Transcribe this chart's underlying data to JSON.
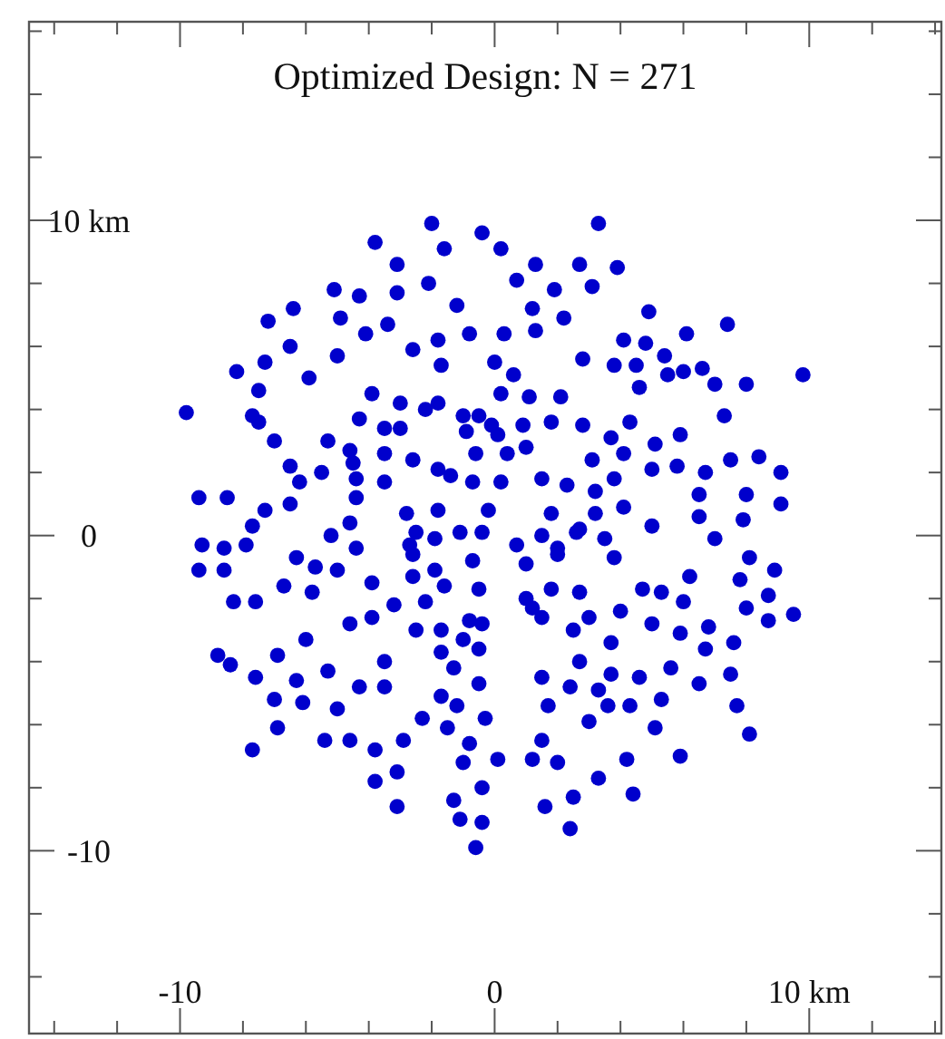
{
  "chart_data": {
    "type": "scatter",
    "title": "Optimized Design: N = 271",
    "marker": "circle",
    "color": "#0000cc",
    "xlim": [
      -14.8,
      14.2
    ],
    "ylim": [
      -15.8,
      16.3
    ],
    "xticks": [
      {
        "value": -14,
        "label": null
      },
      {
        "value": -12,
        "label": null
      },
      -10,
      {
        "value": -8,
        "label": null
      },
      {
        "value": -6,
        "label": null
      },
      {
        "value": -4,
        "label": null
      },
      {
        "value": -2,
        "label": null
      },
      0,
      {
        "value": 2,
        "label": null
      },
      {
        "value": 4,
        "label": null
      },
      {
        "value": 6,
        "label": null
      },
      {
        "value": 8,
        "label": null
      },
      {
        "value": 10,
        "label": "10 km"
      },
      {
        "value": 12,
        "label": null
      },
      {
        "value": 14,
        "label": null
      }
    ],
    "yticks": [
      {
        "value": -14,
        "label": null
      },
      {
        "value": -12,
        "label": null
      },
      -10,
      {
        "value": -8,
        "label": null
      },
      {
        "value": -6,
        "label": null
      },
      {
        "value": -4,
        "label": null
      },
      {
        "value": -2,
        "label": null
      },
      0,
      {
        "value": 2,
        "label": null
      },
      {
        "value": 4,
        "label": null
      },
      {
        "value": 6,
        "label": null
      },
      {
        "value": 8,
        "label": null
      },
      {
        "value": 10,
        "label": "10 km"
      },
      {
        "value": 12,
        "label": null
      },
      {
        "value": 14,
        "label": null
      },
      {
        "value": 16,
        "label": null
      }
    ],
    "x": [
      -2.0,
      -0.4,
      -3.8,
      -1.6,
      -3.1,
      -2.1,
      -5.1,
      -4.3,
      -3.1,
      -1.2,
      -6.4,
      -7.2,
      -4.9,
      -3.4,
      -4.1,
      -0.8,
      -1.8,
      -6.5,
      -2.6,
      -5.0,
      -7.3,
      -1.7,
      -8.2,
      -5.9,
      -7.5,
      -3.9,
      -3.0,
      -2.2,
      -1.8,
      -9.8,
      -7.7,
      -7.5,
      -1.0,
      -0.5,
      -4.3,
      -3.5,
      -3.0,
      -0.9,
      -7.0,
      -5.3,
      -4.6,
      -0.6,
      -4.5,
      -2.6,
      -3.5,
      -6.5,
      -5.5,
      -4.4,
      -1.8,
      -1.4,
      -6.2,
      -3.5,
      -0.7,
      -9.4,
      -4.4,
      -8.5,
      -6.5,
      -7.3,
      -7.7,
      -4.6,
      -2.8,
      -1.8,
      -0.2,
      3.3,
      0.2,
      1.3,
      2.7,
      3.9,
      0.7,
      1.9,
      3.1,
      1.2,
      4.9,
      2.2,
      7.4,
      1.3,
      0.3,
      4.1,
      4.8,
      6.1,
      2.8,
      3.8,
      4.5,
      5.4,
      0.0,
      0.6,
      5.5,
      6.0,
      6.6,
      7.0,
      8.0,
      9.8,
      4.6,
      0.2,
      1.1,
      2.1,
      7.3,
      4.3,
      0.9,
      1.8,
      2.8,
      -0.1,
      0.1,
      3.7,
      5.9,
      5.1,
      0.4,
      1.0,
      4.1,
      3.1,
      5.0,
      5.8,
      6.7,
      7.5,
      8.4,
      9.1,
      0.2,
      1.5,
      2.3,
      3.8,
      3.2,
      6.5,
      8.0,
      9.1,
      1.8,
      3.2,
      4.1,
      6.5,
      7.9,
      5.0,
      2.7,
      -5.2,
      -2.5,
      -1.9,
      -1.1,
      -0.4,
      -2.7,
      -2.6,
      -9.3,
      -8.6,
      -7.9,
      -6.3,
      -4.4,
      -9.4,
      -8.6,
      -5.7,
      -5.0,
      -2.6,
      -1.9,
      -0.7,
      -6.7,
      -5.8,
      -3.9,
      -1.6,
      -0.5,
      -8.3,
      -7.6,
      -3.2,
      -2.2,
      -4.6,
      -3.9,
      -2.5,
      -1.7,
      -0.8,
      -0.4,
      -6.0,
      -1.0,
      -8.8,
      -8.4,
      -6.9,
      -1.7,
      -0.5,
      -7.6,
      -5.3,
      -3.5,
      -6.3,
      -4.3,
      -3.5,
      -1.3,
      -0.5,
      -7.0,
      -6.1,
      -1.7,
      -5.0,
      -1.2,
      -6.9,
      -2.3,
      -1.5,
      -0.3,
      -5.4,
      -4.6,
      -3.8,
      -2.9,
      -0.8,
      -7.7,
      -1.0,
      -3.1,
      -3.8,
      -0.4,
      -3.1,
      -1.3,
      -1.1,
      -0.4,
      -0.6,
      0.7,
      1.5,
      2.0,
      2.0,
      2.6,
      3.5,
      7.0,
      3.8,
      8.1,
      1.0,
      8.9,
      6.2,
      7.8,
      1.8,
      2.7,
      4.7,
      5.3,
      8.7,
      1.0,
      1.2,
      1.5,
      4.0,
      6.0,
      8.0,
      9.5,
      8.7,
      3.0,
      2.5,
      5.0,
      5.9,
      6.8,
      7.6,
      3.7,
      6.7,
      2.7,
      5.6,
      1.5,
      3.7,
      4.6,
      7.5,
      2.4,
      3.3,
      6.5,
      1.7,
      3.6,
      4.3,
      5.3,
      7.7,
      3.0,
      5.1,
      8.1,
      1.5,
      0.1,
      1.2,
      2.0,
      4.2,
      5.9,
      3.3,
      4.4,
      2.5,
      1.6,
      2.4
    ],
    "values": [
      9.9,
      9.6,
      9.3,
      9.1,
      8.6,
      8.0,
      7.8,
      7.6,
      7.7,
      7.3,
      7.2,
      6.8,
      6.9,
      6.7,
      6.4,
      6.4,
      6.2,
      6.0,
      5.9,
      5.7,
      5.5,
      5.4,
      5.2,
      5.0,
      4.6,
      4.5,
      4.2,
      4.0,
      4.2,
      3.9,
      3.8,
      3.6,
      3.8,
      3.8,
      3.7,
      3.4,
      3.4,
      3.3,
      3.0,
      3.0,
      2.7,
      2.6,
      2.3,
      2.4,
      2.6,
      2.2,
      2.0,
      1.8,
      2.1,
      1.9,
      1.7,
      1.7,
      1.7,
      1.2,
      1.2,
      1.2,
      1.0,
      0.8,
      0.3,
      0.4,
      0.7,
      0.8,
      0.8,
      9.9,
      9.1,
      8.6,
      8.6,
      8.5,
      8.1,
      7.8,
      7.9,
      7.2,
      7.1,
      6.9,
      6.7,
      6.5,
      6.4,
      6.2,
      6.1,
      6.4,
      5.6,
      5.4,
      5.4,
      5.7,
      5.5,
      5.1,
      5.1,
      5.2,
      5.3,
      4.8,
      4.8,
      5.1,
      4.7,
      4.5,
      4.4,
      4.4,
      3.8,
      3.6,
      3.5,
      3.6,
      3.5,
      3.5,
      3.2,
      3.1,
      3.2,
      2.9,
      2.6,
      2.8,
      2.6,
      2.4,
      2.1,
      2.2,
      2.0,
      2.4,
      2.5,
      2.0,
      1.7,
      1.8,
      1.6,
      1.8,
      1.4,
      1.3,
      1.3,
      1.0,
      0.7,
      0.7,
      0.9,
      0.6,
      0.5,
      0.3,
      0.2,
      0.0,
      0.1,
      -0.1,
      0.1,
      0.1,
      -0.3,
      -0.6,
      -0.3,
      -0.4,
      -0.3,
      -0.7,
      -0.4,
      -1.1,
      -1.1,
      -1.0,
      -1.1,
      -1.3,
      -1.1,
      -0.8,
      -1.6,
      -1.8,
      -1.5,
      -1.6,
      -1.7,
      -2.1,
      -2.1,
      -2.2,
      -2.1,
      -2.8,
      -2.6,
      -3.0,
      -3.0,
      -2.7,
      -2.8,
      -3.3,
      -3.3,
      -3.8,
      -4.1,
      -3.8,
      -3.7,
      -3.6,
      -4.5,
      -4.3,
      -4.0,
      -4.6,
      -4.8,
      -4.8,
      -4.2,
      -4.7,
      -5.2,
      -5.3,
      -5.1,
      -5.5,
      -5.4,
      -6.1,
      -5.8,
      -6.1,
      -5.8,
      -6.5,
      -6.5,
      -6.8,
      -6.5,
      -6.6,
      -6.8,
      -7.2,
      -7.5,
      -7.8,
      -8.0,
      -8.6,
      -8.4,
      -9.0,
      -9.1,
      -9.9,
      -0.3,
      0.0,
      -0.4,
      -0.6,
      0.1,
      -0.1,
      -0.1,
      -0.7,
      -0.7,
      -0.9,
      -1.1,
      -1.3,
      -1.4,
      -1.7,
      -1.8,
      -1.7,
      -1.8,
      -1.9,
      -2.0,
      -2.3,
      -2.6,
      -2.4,
      -2.1,
      -2.3,
      -2.5,
      -2.7,
      -2.6,
      -3.0,
      -2.8,
      -3.1,
      -2.9,
      -3.4,
      -3.4,
      -3.6,
      -4.0,
      -4.2,
      -4.5,
      -4.4,
      -4.5,
      -4.4,
      -4.8,
      -4.9,
      -4.7,
      -5.4,
      -5.4,
      -5.4,
      -5.2,
      -5.4,
      -5.9,
      -6.1,
      -6.3,
      -6.5,
      -7.1,
      -7.1,
      -7.2,
      -7.1,
      -7.0,
      -7.7,
      -8.2,
      -8.3,
      -8.6,
      -9.3
    ]
  }
}
